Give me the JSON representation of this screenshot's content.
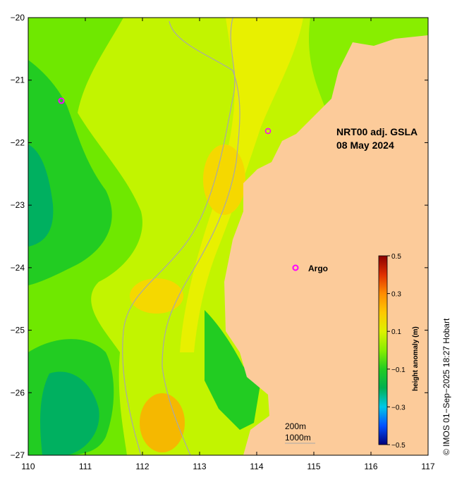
{
  "map": {
    "title_line1": "NRT00 adj. GSLA",
    "title_line2": "08 May 2024",
    "x_ticks": [
      {
        "value": 110,
        "label": "110"
      },
      {
        "value": 111,
        "label": "111"
      },
      {
        "value": 112,
        "label": "112"
      },
      {
        "value": 113,
        "label": "113"
      },
      {
        "value": 114,
        "label": "114"
      },
      {
        "value": 115,
        "label": "115"
      },
      {
        "value": 116,
        "label": "116"
      },
      {
        "value": 117,
        "label": "117"
      }
    ],
    "y_ticks": [
      {
        "value": -20,
        "label": "−20"
      },
      {
        "value": -21,
        "label": "−21"
      },
      {
        "value": -22,
        "label": "−22"
      },
      {
        "value": -23,
        "label": "−23"
      },
      {
        "value": -24,
        "label": "−24"
      },
      {
        "value": -25,
        "label": "−25"
      },
      {
        "value": -26,
        "label": "−26"
      },
      {
        "value": -27,
        "label": "−27"
      }
    ],
    "colorbar": {
      "label": "height anomaly (m)",
      "ticks": [
        {
          "value": 0.5,
          "label": "0.5"
        },
        {
          "value": 0.3,
          "label": "0.3"
        },
        {
          "value": 0.1,
          "label": "0.1"
        },
        {
          "value": -0.1,
          "label": "−0.1"
        },
        {
          "value": -0.3,
          "label": "−0.3"
        },
        {
          "value": -0.5,
          "label": "−0.5"
        }
      ]
    },
    "argo_legend": {
      "symbol": "o",
      "label": "Argo"
    },
    "isobath_legend": {
      "line1": "200m",
      "line2": "1000m"
    },
    "credit": "© IMOS 01−Sep−2025 18:27 Hobart",
    "colors": {
      "land": "#fccb9a",
      "argo": "#ff00ff",
      "isobath": "#a8a8a8"
    }
  }
}
